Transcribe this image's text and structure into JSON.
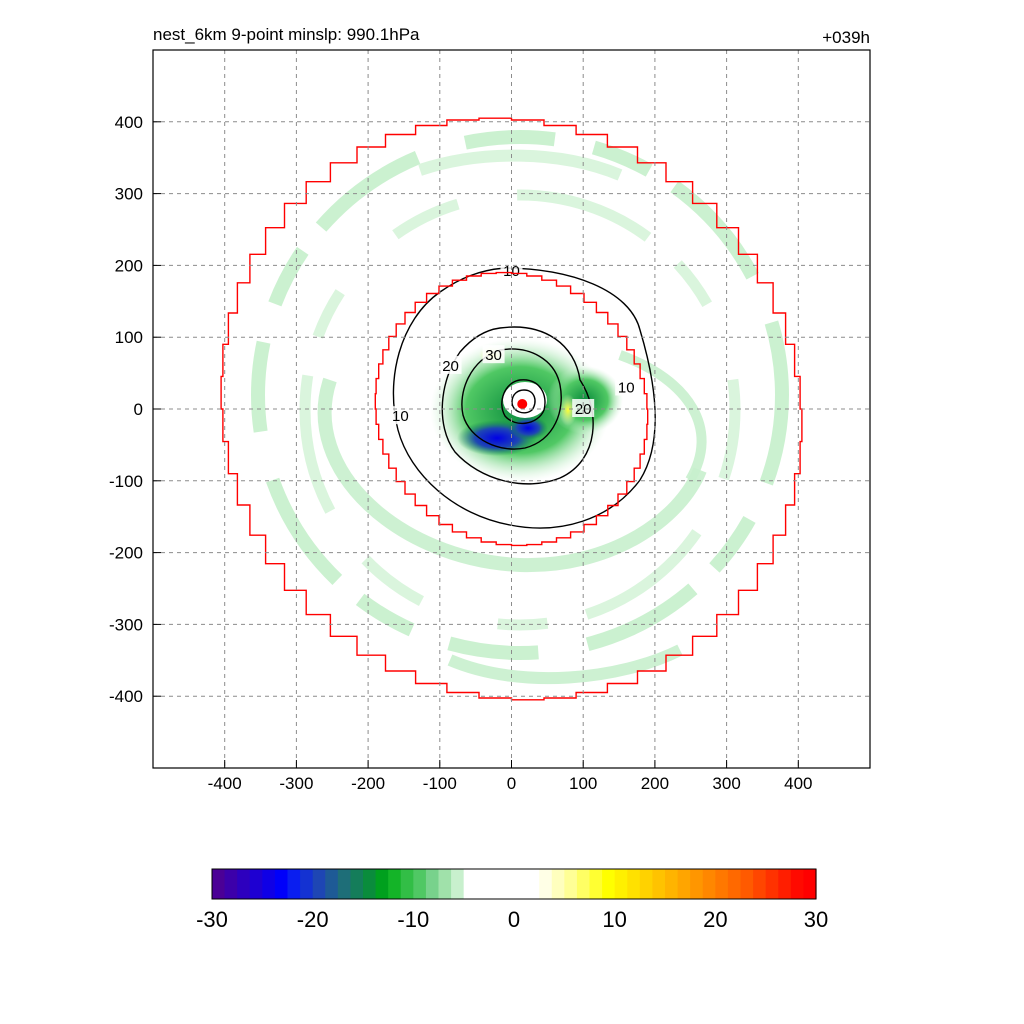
{
  "chart_data": {
    "type": "heatmap",
    "title": "nest_6km  9-point minslp: 990.1hPa",
    "time_label": "+039h",
    "xlim": [
      -500,
      500
    ],
    "ylim": [
      -500,
      500
    ],
    "x_ticks": [
      -400,
      -300,
      -200,
      -100,
      0,
      100,
      200,
      300,
      400
    ],
    "y_ticks": [
      -400,
      -300,
      -200,
      -100,
      0,
      100,
      200,
      300,
      400
    ],
    "grid": true,
    "grid_style": "dashed",
    "storm_center": [
      15,
      7
    ],
    "domain_boundaries": [
      {
        "name": "outer nest boundary",
        "shape": "stepped-circle",
        "radius": 405,
        "color": "#ff0000"
      },
      {
        "name": "inner nest boundary",
        "shape": "stepped-circle",
        "radius": 190,
        "color": "#ff0000"
      }
    ],
    "contours": {
      "color": "#000000",
      "labels": [
        {
          "text": "10",
          "x": 0,
          "y": 192
        },
        {
          "text": "10",
          "x": -155,
          "y": -10
        },
        {
          "text": "10",
          "x": 160,
          "y": 30
        },
        {
          "text": "20",
          "x": -85,
          "y": 60
        },
        {
          "text": "20",
          "x": 100,
          "y": 0
        },
        {
          "text": "30",
          "x": -25,
          "y": 75
        }
      ]
    },
    "colorbar": {
      "min": -30,
      "max": 30,
      "ticks": [
        -30,
        -20,
        -10,
        0,
        10,
        20,
        30
      ],
      "placement": "bottom",
      "colors": [
        "#4b0096",
        "#3c00aa",
        "#2d00be",
        "#1e00d2",
        "#0f00e6",
        "#0000fa",
        "#0a1ef0",
        "#1432d2",
        "#1e46b4",
        "#1e5a96",
        "#1e6e78",
        "#147d5a",
        "#0a8c3c",
        "#00a01e",
        "#14b428",
        "#32be46",
        "#50c864",
        "#78d28c",
        "#a0e1aa",
        "#c8f0cd",
        "#ffffff",
        "#ffffff",
        "#ffffff",
        "#ffffff",
        "#ffffff",
        "#ffffff",
        "#ffffe6",
        "#ffffbe",
        "#ffff96",
        "#ffff64",
        "#ffff32",
        "#ffff00",
        "#fff000",
        "#ffe100",
        "#ffd200",
        "#ffc300",
        "#ffb400",
        "#ffa500",
        "#ff9600",
        "#ff8700",
        "#ff7800",
        "#ff6900",
        "#ff5a00",
        "#ff4600",
        "#ff3200",
        "#ff1e00",
        "#ff0a00",
        "#ff0000"
      ]
    }
  }
}
